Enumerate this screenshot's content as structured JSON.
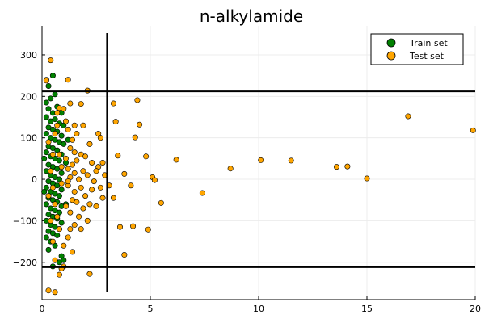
{
  "chart_data": {
    "type": "scatter",
    "title": "n-alkylamide",
    "xlabel": "",
    "ylabel": "",
    "xlim": [
      0,
      20
    ],
    "ylim": [
      -290,
      370
    ],
    "xticks": [
      0,
      5,
      10,
      15,
      20
    ],
    "yticks": [
      -200,
      -100,
      0,
      100,
      200,
      300
    ],
    "xtick_labels": [
      "0",
      "5",
      "10",
      "15",
      "20"
    ],
    "ytick_labels": [
      "−200",
      "−100",
      "0",
      "100",
      "200",
      "300"
    ],
    "grid": true,
    "legend_position": "top-right",
    "reference_lines": {
      "vertical_x": 3.0,
      "horizontal_y": [
        212,
        -212
      ]
    },
    "series": [
      {
        "name": "Train set",
        "color": "#008000",
        "points": [
          [
            0.2,
            240
          ],
          [
            0.5,
            250
          ],
          [
            0.3,
            225
          ],
          [
            0.6,
            205
          ],
          [
            0.4,
            195
          ],
          [
            0.2,
            185
          ],
          [
            0.7,
            175
          ],
          [
            0.3,
            170
          ],
          [
            0.5,
            160
          ],
          [
            0.9,
            160
          ],
          [
            0.2,
            150
          ],
          [
            0.4,
            140
          ],
          [
            0.6,
            145
          ],
          [
            0.8,
            135
          ],
          [
            1.0,
            130
          ],
          [
            0.3,
            125
          ],
          [
            0.5,
            120
          ],
          [
            0.7,
            115
          ],
          [
            0.2,
            110
          ],
          [
            0.9,
            105
          ],
          [
            0.4,
            100
          ],
          [
            0.6,
            95
          ],
          [
            0.8,
            90
          ],
          [
            1.0,
            85
          ],
          [
            0.3,
            80
          ],
          [
            0.5,
            75
          ],
          [
            0.7,
            70
          ],
          [
            0.2,
            65
          ],
          [
            0.9,
            60
          ],
          [
            0.4,
            55
          ],
          [
            0.6,
            50
          ],
          [
            0.8,
            45
          ],
          [
            1.1,
            40
          ],
          [
            0.3,
            35
          ],
          [
            0.5,
            30
          ],
          [
            0.7,
            25
          ],
          [
            0.2,
            20
          ],
          [
            0.9,
            15
          ],
          [
            0.4,
            10
          ],
          [
            0.6,
            5
          ],
          [
            0.8,
            0
          ],
          [
            0.3,
            -5
          ],
          [
            0.5,
            -10
          ],
          [
            0.7,
            -15
          ],
          [
            0.2,
            -20
          ],
          [
            0.9,
            -25
          ],
          [
            0.4,
            -30
          ],
          [
            0.6,
            -35
          ],
          [
            0.8,
            -40
          ],
          [
            0.3,
            -45
          ],
          [
            0.5,
            -50
          ],
          [
            0.7,
            -55
          ],
          [
            0.2,
            -60
          ],
          [
            0.9,
            -65
          ],
          [
            0.4,
            -70
          ],
          [
            0.6,
            -75
          ],
          [
            0.8,
            -80
          ],
          [
            0.3,
            -85
          ],
          [
            0.5,
            -90
          ],
          [
            0.7,
            -95
          ],
          [
            0.2,
            -100
          ],
          [
            0.9,
            -105
          ],
          [
            0.4,
            -110
          ],
          [
            0.6,
            -115
          ],
          [
            0.8,
            -120
          ],
          [
            0.3,
            -125
          ],
          [
            0.5,
            -130
          ],
          [
            0.7,
            -135
          ],
          [
            0.2,
            -140
          ],
          [
            0.4,
            -150
          ],
          [
            0.6,
            -160
          ],
          [
            0.3,
            -170
          ],
          [
            0.9,
            -185
          ],
          [
            0.8,
            -200
          ],
          [
            0.5,
            -210
          ],
          [
            1.0,
            -195
          ],
          [
            0.1,
            50
          ],
          [
            0.1,
            -30
          ],
          [
            1.2,
            95
          ],
          [
            1.1,
            -60
          ]
        ]
      },
      {
        "name": "Test set",
        "color": "#ffa500",
        "points": [
          [
            0.4,
            287
          ],
          [
            0.2,
            238
          ],
          [
            1.2,
            240
          ],
          [
            2.1,
            214
          ],
          [
            1.3,
            183
          ],
          [
            1.8,
            182
          ],
          [
            0.8,
            172
          ],
          [
            0.7,
            160
          ],
          [
            1.1,
            140
          ],
          [
            1.5,
            130
          ],
          [
            1.9,
            130
          ],
          [
            1.2,
            120
          ],
          [
            1.6,
            110
          ],
          [
            2.6,
            110
          ],
          [
            2.7,
            100
          ],
          [
            1.4,
            95
          ],
          [
            2.2,
            85
          ],
          [
            1.3,
            75
          ],
          [
            1.5,
            65
          ],
          [
            1.8,
            60
          ],
          [
            2.0,
            55
          ],
          [
            1.1,
            50
          ],
          [
            1.6,
            45
          ],
          [
            2.3,
            40
          ],
          [
            2.8,
            40
          ],
          [
            1.4,
            35
          ],
          [
            2.6,
            30
          ],
          [
            1.2,
            25
          ],
          [
            1.9,
            20
          ],
          [
            2.5,
            20
          ],
          [
            1.5,
            15
          ],
          [
            2.1,
            10
          ],
          [
            2.9,
            10
          ],
          [
            1.3,
            5
          ],
          [
            1.7,
            0
          ],
          [
            2.4,
            -5
          ],
          [
            3.1,
            -15
          ],
          [
            1.2,
            -15
          ],
          [
            1.8,
            -20
          ],
          [
            2.7,
            -20
          ],
          [
            2.3,
            -25
          ],
          [
            1.5,
            -30
          ],
          [
            2.0,
            -40
          ],
          [
            1.4,
            -50
          ],
          [
            2.8,
            -45
          ],
          [
            3.3,
            -45
          ],
          [
            1.6,
            -55
          ],
          [
            2.2,
            -60
          ],
          [
            1.1,
            -65
          ],
          [
            1.9,
            -70
          ],
          [
            2.5,
            -65
          ],
          [
            1.3,
            -80
          ],
          [
            1.7,
            -90
          ],
          [
            2.1,
            -100
          ],
          [
            1.5,
            -110
          ],
          [
            1.8,
            -120
          ],
          [
            1.2,
            -140
          ],
          [
            1.4,
            -175
          ],
          [
            1.0,
            -210
          ],
          [
            0.9,
            -215
          ],
          [
            0.6,
            -195
          ],
          [
            0.8,
            -230
          ],
          [
            2.2,
            -228
          ],
          [
            0.3,
            -268
          ],
          [
            0.6,
            -272
          ],
          [
            3.3,
            183
          ],
          [
            3.4,
            139
          ],
          [
            4.4,
            191
          ],
          [
            4.5,
            132
          ],
          [
            4.3,
            101
          ],
          [
            3.5,
            57
          ],
          [
            4.8,
            55
          ],
          [
            6.2,
            47
          ],
          [
            3.8,
            13
          ],
          [
            5.1,
            5
          ],
          [
            4.1,
            -15
          ],
          [
            5.2,
            -2
          ],
          [
            7.4,
            -33
          ],
          [
            5.5,
            -57
          ],
          [
            3.6,
            -115
          ],
          [
            4.2,
            -113
          ],
          [
            4.9,
            -121
          ],
          [
            3.8,
            -182
          ],
          [
            8.7,
            26
          ],
          [
            10.1,
            46
          ],
          [
            11.5,
            45
          ],
          [
            13.6,
            30
          ],
          [
            14.1,
            31
          ],
          [
            15.0,
            2
          ],
          [
            16.9,
            152
          ],
          [
            19.9,
            118
          ],
          [
            0.5,
            60
          ],
          [
            0.9,
            30
          ],
          [
            0.3,
            -40
          ],
          [
            0.7,
            -90
          ],
          [
            0.5,
            -150
          ],
          [
            1.0,
            170
          ],
          [
            0.6,
            110
          ],
          [
            0.4,
            20
          ],
          [
            0.8,
            -120
          ],
          [
            1.0,
            -160
          ],
          [
            0.3,
            90
          ],
          [
            0.9,
            -10
          ],
          [
            0.6,
            -60
          ],
          [
            0.5,
            -20
          ],
          [
            1.2,
            -5
          ],
          [
            0.7,
            130
          ],
          [
            0.4,
            -100
          ],
          [
            1.3,
            -120
          ],
          [
            0.8,
            60
          ]
        ]
      }
    ]
  }
}
